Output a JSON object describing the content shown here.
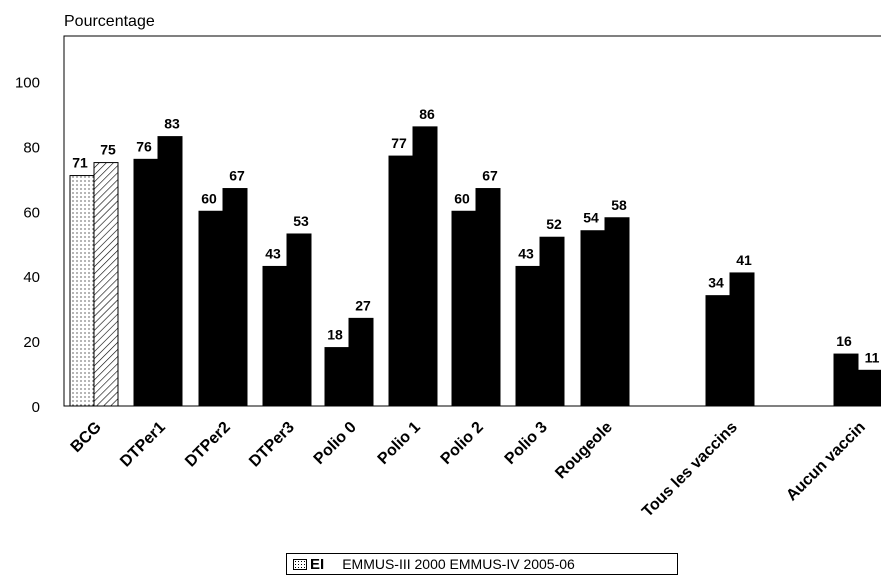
{
  "chart_data": {
    "type": "bar",
    "ylabel": "Pourcentage",
    "y_ticks": [
      "0",
      "20",
      "40",
      "60",
      "80",
      "100"
    ],
    "ylim": [
      0,
      114
    ],
    "categories": [
      "BCG",
      "DTPer1",
      "DTPer2",
      "DTPer3",
      "Polio 0",
      "Polio 1",
      "Polio 2",
      "Polio 3",
      "Rougeole",
      "Tous les vaccins",
      "Aucun vaccin"
    ],
    "series": [
      {
        "name": "EMMUS-III 2000",
        "values": [
          71,
          76,
          60,
          43,
          18,
          77,
          60,
          43,
          54,
          34,
          16
        ]
      },
      {
        "name": "EMMUS-IV 2005-06",
        "values": [
          75,
          83,
          67,
          53,
          27,
          86,
          67,
          52,
          58,
          41,
          11
        ]
      }
    ],
    "legend_position": "bottom",
    "legend_truncated_text": "EI",
    "legend_text": "EMMUS-III 2000 EMMUS-IV 2005-06"
  }
}
